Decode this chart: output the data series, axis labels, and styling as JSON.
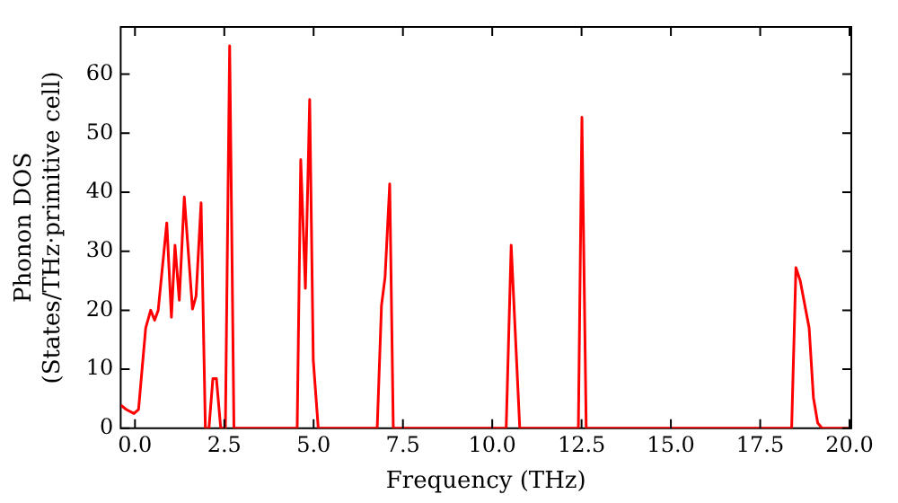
{
  "chart_data": {
    "type": "line",
    "xlabel": "Frequency (THz)",
    "ylabel": "Phonon DOS\n(States/THz·primitive cell)",
    "xlim": [
      -0.4,
      20.05
    ],
    "ylim": [
      0,
      68
    ],
    "xticks": [
      {
        "value": 0,
        "label": "0.0"
      },
      {
        "value": 2.5,
        "label": "2.5"
      },
      {
        "value": 5,
        "label": "5.0"
      },
      {
        "value": 7.5,
        "label": "7.5"
      },
      {
        "value": 10,
        "label": "10.0"
      },
      {
        "value": 12.5,
        "label": "12.5"
      },
      {
        "value": 15,
        "label": "15.0"
      },
      {
        "value": 17.5,
        "label": "17.5"
      },
      {
        "value": 20,
        "label": "20.0"
      }
    ],
    "yticks": [
      0,
      10,
      20,
      30,
      40,
      50,
      60
    ],
    "grid": false,
    "legend": false,
    "marker": "none",
    "line_style": "solid",
    "series": [
      {
        "color": "#ff0000",
        "x": [
          -0.39,
          -0.25,
          -0.03,
          0.1,
          0.3,
          0.44,
          0.55,
          0.65,
          0.89,
          1.02,
          1.12,
          1.24,
          1.38,
          1.61,
          1.71,
          1.85,
          1.97,
          2.07,
          2.18,
          2.28,
          2.4,
          2.53,
          2.65,
          2.77,
          4.54,
          4.64,
          4.77,
          4.89,
          4.99,
          5.13,
          6.78,
          6.9,
          7.0,
          7.13,
          7.23,
          10.39,
          10.53,
          10.77,
          12.41,
          12.51,
          12.63,
          18.38,
          18.5,
          18.62,
          18.87,
          18.99,
          19.11,
          19.23,
          20.0
        ],
        "values": [
          3.9,
          3.2,
          2.5,
          3.2,
          17,
          20,
          18.3,
          20,
          34.8,
          18.8,
          31,
          21.7,
          39.2,
          20.2,
          22.4,
          38.2,
          0,
          0,
          8.4,
          8.4,
          0,
          0,
          64.8,
          0,
          0,
          45.5,
          23.7,
          55.7,
          11.6,
          0,
          0,
          20.8,
          25.6,
          41.4,
          0,
          0,
          31,
          0,
          0,
          52.7,
          0,
          0,
          27.2,
          25,
          17,
          5.2,
          0.9,
          0,
          0
        ]
      }
    ]
  }
}
